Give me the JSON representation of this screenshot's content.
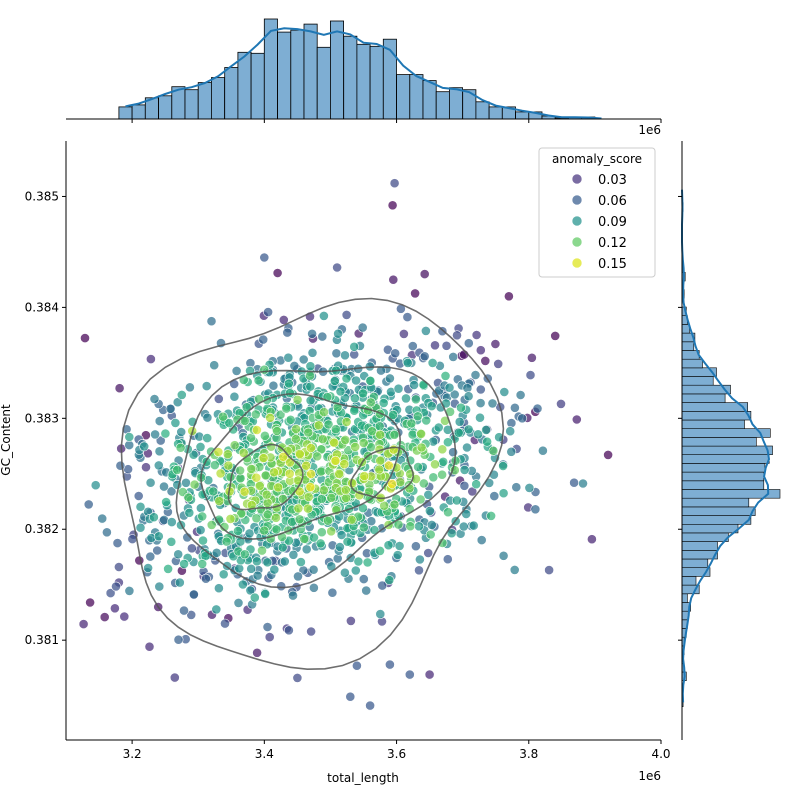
{
  "chart_data": {
    "type": "scatter",
    "subtype": "jointplot",
    "xlabel": "total_length",
    "ylabel": "GC_Content",
    "x_offset_label": "1e6",
    "top_offset_label": "1e6",
    "xlim": [
      3.1,
      4.0
    ],
    "ylim": [
      0.3801,
      0.3855
    ],
    "x_ticks": [
      3.2,
      3.4,
      3.6,
      3.8,
      4.0
    ],
    "x_tick_labels": [
      "3.2",
      "3.4",
      "3.6",
      "3.8",
      "4.0"
    ],
    "y_ticks": [
      0.381,
      0.382,
      0.383,
      0.384,
      0.385
    ],
    "y_tick_labels": [
      "0.381",
      "0.382",
      "0.383",
      "0.384",
      "0.385"
    ],
    "grid": false,
    "legend": {
      "title": "anomaly_score",
      "placement": "top-right",
      "entries": [
        {
          "label": "0.03",
          "color": "#46337e"
        },
        {
          "label": "0.06",
          "color": "#365c8d"
        },
        {
          "label": "0.09",
          "color": "#21918c"
        },
        {
          "label": "0.12",
          "color": "#5ec962"
        },
        {
          "label": "0.15",
          "color": "#dde318"
        }
      ]
    },
    "colormap": "viridis",
    "hue_range": [
      0.0,
      0.18
    ],
    "marginal_color": "#1f77b4",
    "contour_color": "#555555",
    "cluster_centers": [
      {
        "x": 3.4,
        "y": 0.38245
      },
      {
        "x": 3.46,
        "y": 0.38265
      },
      {
        "x": 3.57,
        "y": 0.3825
      }
    ],
    "contour_levels": [
      {
        "cx": 3.465,
        "cy": 0.38245,
        "rx": 0.28,
        "ry": 0.0016
      },
      {
        "cx": 3.47,
        "cy": 0.38255,
        "rx": 0.21,
        "ry": 0.00095
      },
      {
        "cx": 3.45,
        "cy": 0.38258,
        "rx": 0.15,
        "ry": 0.0006
      },
      {
        "cx": 3.4,
        "cy": 0.38245,
        "rx": 0.055,
        "ry": 0.00028
      },
      {
        "cx": 3.58,
        "cy": 0.3825,
        "rx": 0.045,
        "ry": 0.00022
      }
    ],
    "outliers": [
      {
        "x": 3.597,
        "y": 0.38512,
        "v": 0.04
      },
      {
        "x": 3.594,
        "y": 0.38492,
        "v": 0.0
      },
      {
        "x": 3.4,
        "y": 0.38445,
        "v": 0.05
      },
      {
        "x": 3.51,
        "y": 0.38436,
        "v": 0.04
      },
      {
        "x": 3.42,
        "y": 0.38431,
        "v": 0.0
      },
      {
        "x": 3.595,
        "y": 0.38425,
        "v": 0.01
      },
      {
        "x": 3.92,
        "y": 0.38267,
        "v": 0.0
      },
      {
        "x": 3.56,
        "y": 0.38041,
        "v": 0.05
      },
      {
        "x": 3.53,
        "y": 0.38049,
        "v": 0.05
      },
      {
        "x": 3.45,
        "y": 0.38066,
        "v": 0.04
      },
      {
        "x": 3.65,
        "y": 0.38069,
        "v": 0.02
      },
      {
        "x": 3.62,
        "y": 0.38069,
        "v": 0.05
      },
      {
        "x": 3.54,
        "y": 0.38077,
        "v": 0.05
      },
      {
        "x": 3.59,
        "y": 0.38078,
        "v": 0.05
      },
      {
        "x": 3.18,
        "y": 0.38166,
        "v": 0.04
      },
      {
        "x": 3.18,
        "y": 0.38152,
        "v": 0.03
      },
      {
        "x": 3.21,
        "y": 0.3823,
        "v": 0.05
      },
      {
        "x": 3.21,
        "y": 0.38281,
        "v": 0.05
      },
      {
        "x": 3.24,
        "y": 0.38313,
        "v": 0.06
      },
      {
        "x": 3.77,
        "y": 0.3841,
        "v": 0.0
      },
      {
        "x": 3.79,
        "y": 0.383,
        "v": 0.06
      },
      {
        "x": 3.81,
        "y": 0.38218,
        "v": 0.06
      }
    ]
  }
}
